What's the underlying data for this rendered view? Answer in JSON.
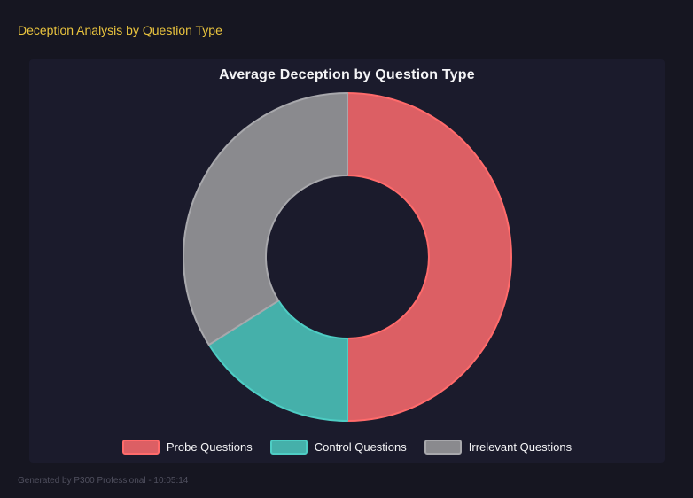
{
  "page": {
    "title": "Deception Analysis by Question Type",
    "footer": "Generated by P300 Professional - 10:05:14"
  },
  "colors": {
    "page_bg": "#161621",
    "panel_bg": "#1b1b2c",
    "accent_yellow": "#eac43e",
    "text_white": "#f5f5f7",
    "footer_gray": "#50505f"
  },
  "chart_data": {
    "type": "pie",
    "variant": "doughnut",
    "title": "Average Deception by Question Type",
    "categories": [
      "Probe Questions",
      "Control Questions",
      "Irrelevant Questions"
    ],
    "values": [
      50,
      16,
      34
    ],
    "cutout_ratio": 0.5,
    "start_angle_deg": 0,
    "direction": "clockwise",
    "legend_position": "bottom",
    "segments": [
      {
        "label": "Probe Questions",
        "value": 50,
        "fill": "#dc5f64",
        "border": "#ff6b6b"
      },
      {
        "label": "Control Questions",
        "value": 16,
        "fill": "#45b0aa",
        "border": "#4ecdc4"
      },
      {
        "label": "Irrelevant Questions",
        "value": 34,
        "fill": "#8a8a8e",
        "border": "#a8a8ac"
      }
    ]
  }
}
